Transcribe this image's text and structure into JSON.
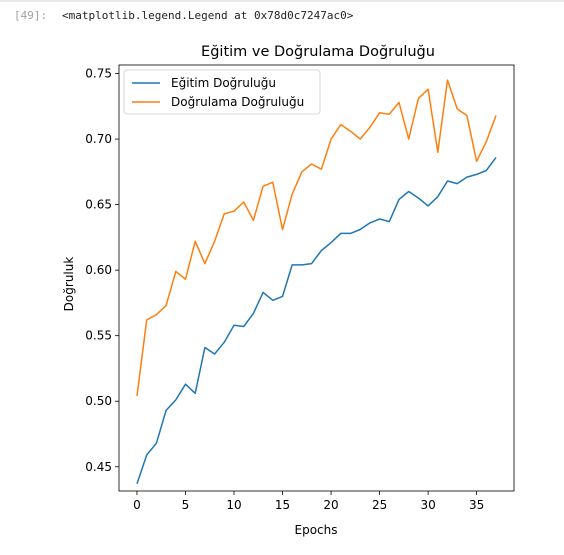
{
  "notebook": {
    "prompt": "[49]:",
    "output_text": "<matplotlib.legend.Legend at 0x78d0c7247ac0>"
  },
  "chart_data": {
    "type": "line",
    "title": "Eğitim ve Doğrulama Doğruluğu",
    "xlabel": "Epochs",
    "ylabel": "Doğruluk",
    "xlim": [
      -1.85,
      38.85
    ],
    "ylim": [
      0.4315,
      0.7565
    ],
    "xticks": [
      0,
      5,
      10,
      15,
      20,
      25,
      30,
      35
    ],
    "yticks": [
      0.45,
      0.5,
      0.55,
      0.6,
      0.65,
      0.7,
      0.75
    ],
    "ytick_labels": [
      "0.45",
      "0.50",
      "0.55",
      "0.60",
      "0.65",
      "0.70",
      "0.75"
    ],
    "grid": false,
    "legend_position": "upper-left",
    "x": [
      0,
      1,
      2,
      3,
      4,
      5,
      6,
      7,
      8,
      9,
      10,
      11,
      12,
      13,
      14,
      15,
      16,
      17,
      18,
      19,
      20,
      21,
      22,
      23,
      24,
      25,
      26,
      27,
      28,
      29,
      30,
      31,
      32,
      33,
      34,
      35,
      36,
      37
    ],
    "series": [
      {
        "name": "Eğitim Doğruluğu",
        "color": "#1f77b4",
        "values": [
          0.437,
          0.459,
          0.468,
          0.493,
          0.501,
          0.513,
          0.506,
          0.541,
          0.536,
          0.545,
          0.558,
          0.557,
          0.567,
          0.583,
          0.577,
          0.58,
          0.604,
          0.604,
          0.605,
          0.615,
          0.621,
          0.628,
          0.628,
          0.631,
          0.636,
          0.639,
          0.637,
          0.654,
          0.66,
          0.655,
          0.649,
          0.656,
          0.668,
          0.666,
          0.671,
          0.673,
          0.676,
          0.686
        ]
      },
      {
        "name": "Doğrulama Doğruluğu",
        "color": "#ff7f0e",
        "values": [
          0.504,
          0.562,
          0.566,
          0.573,
          0.599,
          0.593,
          0.622,
          0.605,
          0.622,
          0.643,
          0.645,
          0.652,
          0.638,
          0.664,
          0.667,
          0.631,
          0.658,
          0.675,
          0.681,
          0.677,
          0.7,
          0.711,
          0.706,
          0.7,
          0.709,
          0.72,
          0.719,
          0.728,
          0.7,
          0.731,
          0.738,
          0.69,
          0.745,
          0.723,
          0.718,
          0.683,
          0.698,
          0.718
        ]
      }
    ]
  }
}
